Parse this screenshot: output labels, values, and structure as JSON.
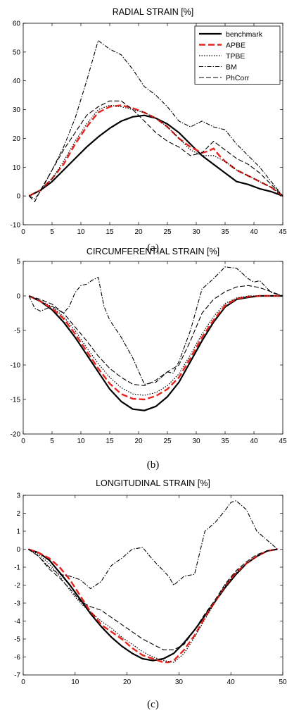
{
  "series_styles": [
    {
      "name": "benchmark",
      "color": "#000000",
      "dash": "",
      "width": 2.2
    },
    {
      "name": "APBE",
      "color": "#e8231e",
      "dash": "9 4",
      "width": 2.4
    },
    {
      "name": "TPBE",
      "color": "#000000",
      "dash": "1.5 2",
      "width": 1.2
    },
    {
      "name": "BM",
      "color": "#000000",
      "dash": "6 2 1.5 2",
      "width": 1.1
    },
    {
      "name": "PhCorr",
      "color": "#000000",
      "dash": "7 3",
      "width": 1.1
    }
  ],
  "chart_data": [
    {
      "type": "line",
      "title": "RADIAL STRAIN [%]",
      "caption": "(a)",
      "xlim": [
        0,
        45
      ],
      "ylim": [
        -10,
        60
      ],
      "xticks": [
        0,
        5,
        10,
        15,
        20,
        25,
        30,
        35,
        40,
        45
      ],
      "yticks": [
        -10,
        0,
        10,
        20,
        30,
        40,
        50,
        60
      ],
      "legend": "top-right",
      "series": [
        {
          "name": "benchmark",
          "x": [
            1,
            3,
            5,
            7,
            9,
            11,
            13,
            15,
            17,
            19,
            21,
            23,
            25,
            27,
            29,
            31,
            33,
            35,
            37,
            39,
            41,
            43,
            45
          ],
          "y": [
            0,
            2,
            5,
            9,
            13,
            17,
            20.5,
            23.5,
            26,
            27.5,
            28,
            27,
            25,
            22,
            18,
            14,
            11,
            8,
            5,
            4,
            2.5,
            1.5,
            0
          ]
        },
        {
          "name": "APBE",
          "x": [
            1,
            3,
            5,
            7,
            9,
            11,
            13,
            15,
            17,
            19,
            21,
            23,
            25,
            27,
            29,
            31,
            32,
            33,
            34,
            35,
            37,
            39,
            41,
            43,
            45
          ],
          "y": [
            0,
            2,
            6,
            11,
            18,
            24,
            29,
            31,
            31.5,
            30.5,
            29,
            27,
            24,
            20,
            17,
            15,
            15.5,
            16.5,
            14,
            12,
            9,
            7,
            5,
            3,
            0
          ]
        },
        {
          "name": "TPBE",
          "x": [
            1,
            3,
            5,
            7,
            9,
            11,
            13,
            15,
            17,
            19,
            21,
            23,
            25,
            27,
            29,
            31,
            33,
            35,
            37,
            39,
            41,
            43,
            45
          ],
          "y": [
            0,
            2,
            6,
            12,
            19,
            25,
            30,
            31.5,
            31,
            30,
            29,
            27,
            24,
            20,
            16,
            14,
            14,
            12,
            9,
            7,
            5,
            3,
            0
          ]
        },
        {
          "name": "BM",
          "x": [
            1,
            2,
            3,
            5,
            7,
            9,
            11,
            13,
            15,
            17,
            19,
            21,
            23,
            25,
            27,
            29,
            31,
            33,
            35,
            37,
            39,
            41,
            43,
            45
          ],
          "y": [
            0,
            -1,
            1.5,
            9,
            17,
            27,
            40,
            54,
            51,
            49,
            44,
            38,
            35,
            31,
            26,
            24,
            26,
            24,
            23,
            18,
            14,
            10,
            5,
            0
          ]
        },
        {
          "name": "PhCorr",
          "x": [
            1,
            2,
            3,
            5,
            7,
            9,
            11,
            13,
            15,
            17,
            19,
            21,
            23,
            25,
            27,
            29,
            31,
            33,
            35,
            37,
            39,
            41,
            43,
            45
          ],
          "y": [
            0,
            -2,
            2,
            9,
            16,
            22,
            28,
            31,
            33,
            33,
            30,
            26,
            22,
            19,
            17,
            14,
            15,
            19,
            16,
            13,
            11,
            8,
            4,
            0
          ]
        }
      ]
    },
    {
      "type": "line",
      "title": "CIRCUMFERENTIAL STRAIN [%]",
      "caption": "(b)",
      "xlim": [
        0,
        45
      ],
      "ylim": [
        -20,
        5
      ],
      "xticks": [
        0,
        5,
        10,
        15,
        20,
        25,
        30,
        35,
        40,
        45
      ],
      "yticks": [
        -20,
        -15,
        -10,
        -5,
        0,
        5
      ],
      "series": [
        {
          "name": "benchmark",
          "x": [
            1,
            3,
            5,
            7,
            9,
            11,
            13,
            15,
            17,
            19,
            21,
            23,
            25,
            27,
            29,
            31,
            33,
            35,
            37,
            39,
            41,
            43,
            45
          ],
          "y": [
            0,
            -0.8,
            -2,
            -3.8,
            -6,
            -8.5,
            -11,
            -13.5,
            -15.3,
            -16.4,
            -16.6,
            -16,
            -14.6,
            -12.5,
            -9.5,
            -6.5,
            -3.8,
            -1.6,
            -0.5,
            -0.2,
            0,
            0,
            0
          ]
        },
        {
          "name": "APBE",
          "x": [
            1,
            3,
            5,
            7,
            9,
            11,
            13,
            15,
            17,
            19,
            21,
            23,
            25,
            27,
            29,
            31,
            33,
            35,
            37,
            39,
            41,
            43,
            45
          ],
          "y": [
            0,
            -0.8,
            -1.8,
            -3.3,
            -5.5,
            -8,
            -10.5,
            -12.7,
            -14.2,
            -14.9,
            -15,
            -14.5,
            -13.5,
            -11.8,
            -9,
            -6,
            -3.5,
            -1.4,
            -0.4,
            -0.1,
            0,
            0,
            0
          ]
        },
        {
          "name": "TPBE",
          "x": [
            1,
            3,
            5,
            7,
            9,
            11,
            13,
            15,
            17,
            19,
            21,
            23,
            25,
            27,
            29,
            31,
            33,
            35,
            37,
            39,
            41,
            43,
            45
          ],
          "y": [
            0,
            -0.7,
            -1.6,
            -3,
            -5,
            -7.5,
            -9.8,
            -11.8,
            -13.3,
            -14.2,
            -14.4,
            -14,
            -13,
            -11.3,
            -8.5,
            -5.5,
            -3,
            -1.1,
            -0.3,
            0,
            0,
            0,
            0
          ]
        },
        {
          "name": "BM",
          "x": [
            1,
            2,
            3,
            5,
            7,
            8,
            9,
            10,
            11,
            12,
            13,
            14,
            15,
            17,
            19,
            21,
            23,
            25,
            26,
            27,
            29,
            31,
            33,
            35,
            37,
            39,
            40,
            41,
            43,
            45
          ],
          "y": [
            0,
            -1.8,
            -2.2,
            -1.5,
            -2.5,
            -1.5,
            0.5,
            1.5,
            1.7,
            2.3,
            2.7,
            -1.5,
            -3.5,
            -6,
            -9,
            -12.8,
            -12.5,
            -11,
            -11.2,
            -9.5,
            -5,
            1,
            2.5,
            4.2,
            4,
            2.5,
            2,
            2.2,
            0.5,
            0
          ]
        },
        {
          "name": "PhCorr",
          "x": [
            1,
            3,
            5,
            7,
            9,
            11,
            13,
            15,
            17,
            19,
            21,
            23,
            25,
            27,
            29,
            31,
            33,
            35,
            37,
            39,
            41,
            43,
            45
          ],
          "y": [
            0,
            -0.5,
            -1.2,
            -2.5,
            -4.5,
            -6.5,
            -8.7,
            -10.5,
            -11.8,
            -12.8,
            -13,
            -12.2,
            -11,
            -10,
            -6.5,
            -2.5,
            -0.5,
            0.6,
            1.3,
            1.5,
            1.2,
            0.6,
            0
          ]
        }
      ]
    },
    {
      "type": "line",
      "title": "LONGITUDINAL STRAIN [%]",
      "caption": "(c)",
      "xlim": [
        0,
        50
      ],
      "ylim": [
        -7,
        3
      ],
      "xticks": [
        0,
        10,
        20,
        30,
        40,
        50
      ],
      "yticks": [
        -7,
        -6,
        -5,
        -4,
        -3,
        -2,
        -1,
        0,
        1,
        2,
        3
      ],
      "series": [
        {
          "name": "benchmark",
          "x": [
            1,
            3,
            5,
            7,
            9,
            11,
            13,
            15,
            17,
            19,
            21,
            23,
            25,
            27,
            29,
            31,
            33,
            35,
            37,
            39,
            41,
            43,
            45,
            47,
            49
          ],
          "y": [
            0,
            -0.2,
            -0.6,
            -1.3,
            -2,
            -2.8,
            -3.6,
            -4.3,
            -4.9,
            -5.4,
            -5.8,
            -6.1,
            -6.2,
            -6.1,
            -5.8,
            -5.2,
            -4.5,
            -3.7,
            -2.9,
            -2.1,
            -1.4,
            -0.8,
            -0.4,
            -0.1,
            0
          ]
        },
        {
          "name": "APBE",
          "x": [
            1,
            3,
            5,
            7,
            9,
            11,
            13,
            14,
            15,
            17,
            19,
            21,
            23,
            25,
            27,
            28,
            29,
            31,
            33,
            35,
            37,
            39,
            41,
            43,
            45,
            47,
            49
          ],
          "y": [
            0,
            -0.2,
            -0.5,
            -1,
            -1.7,
            -2.6,
            -3.5,
            -3.8,
            -4.2,
            -4.6,
            -5,
            -5.5,
            -5.9,
            -6.1,
            -6.3,
            -6.3,
            -6.2,
            -5.6,
            -4.8,
            -3.8,
            -2.9,
            -2,
            -1.3,
            -0.8,
            -0.4,
            -0.1,
            0
          ]
        },
        {
          "name": "TPBE",
          "x": [
            1,
            3,
            5,
            7,
            9,
            11,
            13,
            15,
            17,
            19,
            21,
            23,
            25,
            27,
            29,
            31,
            33,
            35,
            37,
            39,
            41,
            43,
            45,
            47,
            49
          ],
          "y": [
            0,
            -0.3,
            -0.8,
            -1.5,
            -2.3,
            -3,
            -3.5,
            -4,
            -4.4,
            -4.9,
            -5.3,
            -5.7,
            -6,
            -6.2,
            -6.3,
            -5.8,
            -4.9,
            -3.9,
            -2.9,
            -2,
            -1.3,
            -0.8,
            -0.4,
            -0.1,
            0
          ]
        },
        {
          "name": "BM",
          "x": [
            1,
            3,
            5,
            7,
            9,
            11,
            13,
            15,
            17,
            19,
            21,
            23,
            25,
            27,
            28,
            29,
            31,
            33,
            35,
            37,
            39,
            40,
            41,
            43,
            45,
            47,
            49
          ],
          "y": [
            0,
            -0.4,
            -1,
            -1.4,
            -1.5,
            -1.7,
            -2.2,
            -1.8,
            -0.9,
            -0.5,
            0,
            0.1,
            -0.6,
            -1.2,
            -1.5,
            -2,
            -1.5,
            -1.4,
            1,
            1.5,
            2.2,
            2.6,
            2.7,
            2.2,
            1,
            0.5,
            0
          ]
        },
        {
          "name": "PhCorr",
          "x": [
            1,
            3,
            5,
            7,
            9,
            11,
            13,
            15,
            17,
            19,
            21,
            23,
            25,
            27,
            29,
            31,
            33,
            35,
            37,
            39,
            41,
            43,
            45,
            47,
            49
          ],
          "y": [
            0,
            -0.4,
            -1.1,
            -1.6,
            -2.2,
            -2.9,
            -3.2,
            -3.4,
            -3.8,
            -4.2,
            -4.6,
            -5,
            -5.3,
            -5.6,
            -5.6,
            -5.3,
            -4.5,
            -3.6,
            -2.8,
            -1.9,
            -1.2,
            -0.7,
            -0.3,
            -0.1,
            0
          ]
        }
      ]
    }
  ]
}
